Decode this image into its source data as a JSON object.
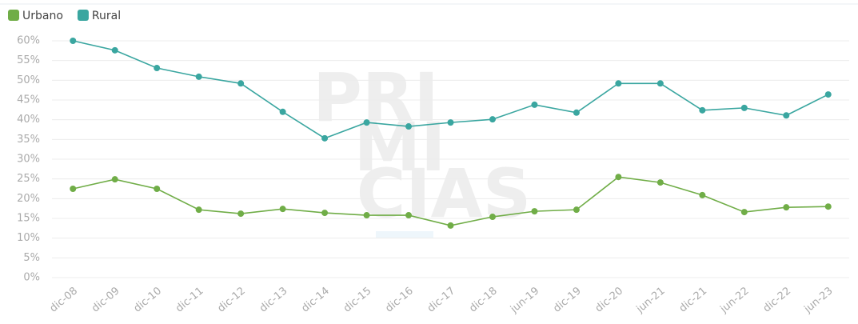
{
  "chart_data": {
    "type": "line",
    "watermark": [
      "PRI",
      "MI",
      "CIAS"
    ],
    "categories": [
      "dic-08",
      "dic-09",
      "dic-10",
      "dic-11",
      "dic-12",
      "dic-13",
      "dic-14",
      "dic-15",
      "dic-16",
      "dic-17",
      "dic-18",
      "jun-19",
      "dic-19",
      "dic-20",
      "jun-21",
      "dic-21",
      "jun-22",
      "dic-22",
      "jun-23"
    ],
    "series": [
      {
        "name": "Urbano",
        "color": "#70ad47",
        "values": [
          22.5,
          24.9,
          22.5,
          17.2,
          16.2,
          17.4,
          16.4,
          15.8,
          15.8,
          13.2,
          15.4,
          16.8,
          17.2,
          25.5,
          24.1,
          20.9,
          16.6,
          17.8,
          18.0
        ]
      },
      {
        "name": "Rural",
        "color": "#3aa6a0",
        "values": [
          60,
          57.6,
          53.1,
          50.9,
          49.2,
          42.0,
          35.3,
          39.3,
          38.3,
          39.3,
          40.1,
          43.8,
          41.8,
          49.2,
          49.2,
          42.4,
          43.0,
          41.1,
          46.4
        ]
      }
    ],
    "ylim": [
      0,
      60
    ],
    "yticks": [
      {
        "value": 0,
        "label": "0%"
      },
      {
        "value": 5,
        "label": "5%"
      },
      {
        "value": 10,
        "label": "10%"
      },
      {
        "value": 15,
        "label": "15%"
      },
      {
        "value": 20,
        "label": "20%"
      },
      {
        "value": 25,
        "label": "25%"
      },
      {
        "value": 30,
        "label": "30%"
      },
      {
        "value": 35,
        "label": "35%"
      },
      {
        "value": 40,
        "label": "40%"
      },
      {
        "value": 45,
        "label": "45%"
      },
      {
        "value": 50,
        "label": "50%"
      },
      {
        "value": 55,
        "label": "55%"
      },
      {
        "value": 60,
        "label": "60%"
      }
    ],
    "grid": true,
    "legend": "top-left"
  }
}
